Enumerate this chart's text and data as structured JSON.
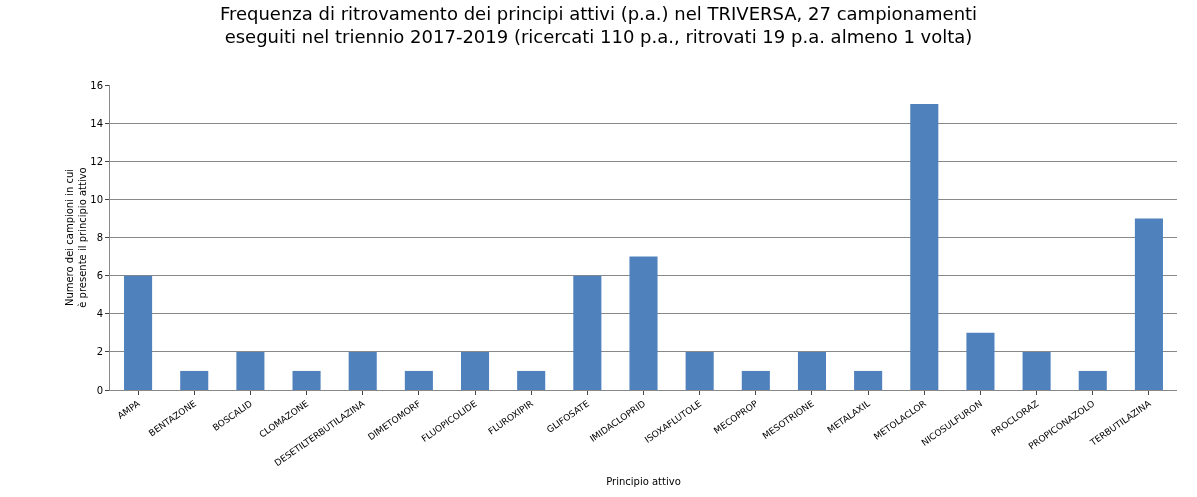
{
  "chart_data": {
    "type": "bar",
    "title": "Frequenza di ritrovamento dei principi attivi (p.a.) nel TRIVERSA, 27 campionamenti\neseguiti nel triennio 2017-2019 (ricercati 110 p.a., ritrovati 19 p.a. almeno 1 volta)",
    "xlabel": "Principio attivo",
    "ylabel": "Numero dei campioni in cui\nè presente il principio attivo",
    "categories": [
      "AMPA",
      "BENTAZONE",
      "BOSCALID",
      "CLOMAZONE",
      "DESETILTERBUTILAZINA",
      "DIMETOMORF",
      "FLUOPICOLIDE",
      "FLUROXIPIR",
      "GLIFOSATE",
      "IMIDACLOPRID",
      "ISOXAFLUTOLE",
      "MECOPROP",
      "MESOTRIONE",
      "METALAXIL",
      "METOLACLOR",
      "NICOSULFURON",
      "PROCLORAZ",
      "PROPICONAZOLO",
      "TERBUTILAZINA"
    ],
    "values": [
      6,
      1,
      2,
      1,
      2,
      1,
      2,
      1,
      6,
      7,
      2,
      1,
      2,
      1,
      15,
      3,
      2,
      1,
      9
    ],
    "color": "#4f81bd",
    "ylim": [
      0,
      16
    ],
    "yticks": [
      0,
      2,
      4,
      6,
      8,
      10,
      12,
      14,
      16
    ],
    "grid": "y"
  }
}
